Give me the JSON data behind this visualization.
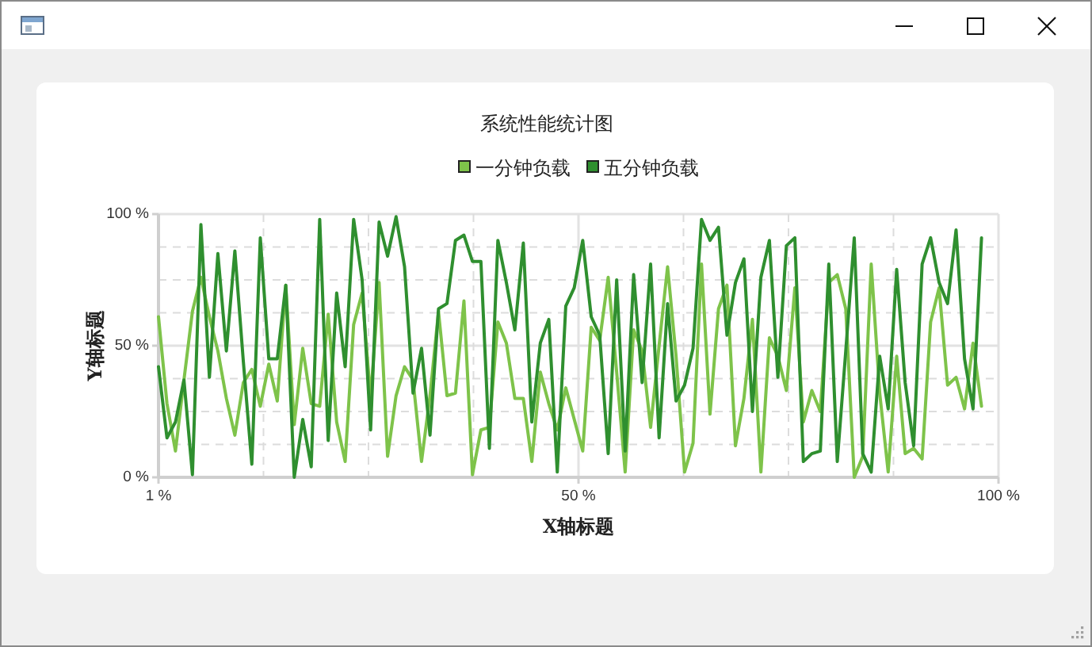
{
  "chart_data": {
    "type": "line",
    "title": "系统性能统计图",
    "xlabel": "X轴标题",
    "ylabel": "Y轴标题",
    "x": [
      1,
      2,
      3,
      4,
      5,
      6,
      7,
      8,
      9,
      10,
      11,
      12,
      13,
      14,
      15,
      16,
      17,
      18,
      19,
      20,
      21,
      22,
      23,
      24,
      25,
      26,
      27,
      28,
      29,
      30,
      31,
      32,
      33,
      34,
      35,
      36,
      37,
      38,
      39,
      40,
      41,
      42,
      43,
      44,
      45,
      46,
      47,
      48,
      49,
      50,
      51,
      52,
      53,
      54,
      55,
      56,
      57,
      58,
      59,
      60,
      61,
      62,
      63,
      64,
      65,
      66,
      67,
      68,
      69,
      70,
      71,
      72,
      73,
      74,
      75,
      76,
      77,
      78,
      79,
      80,
      81,
      82,
      83,
      84,
      85,
      86,
      87,
      88,
      89,
      90,
      91,
      92,
      93,
      94,
      95,
      96,
      97,
      98
    ],
    "series": [
      {
        "name": "一分钟负载",
        "color": "#7ec34a",
        "values": [
          61,
          28,
          10,
          37,
          63,
          76,
          61,
          48,
          30,
          16,
          36,
          41,
          27,
          43,
          29,
          73,
          20,
          49,
          28,
          27,
          62,
          21,
          6,
          58,
          70,
          30,
          74,
          8,
          31,
          42,
          37,
          6,
          31,
          63,
          31,
          32,
          67,
          1,
          18,
          19,
          59,
          51,
          30,
          30,
          6,
          40,
          28,
          18,
          34,
          22,
          10,
          57,
          52,
          76,
          40,
          2,
          56,
          48,
          19,
          50,
          80,
          46,
          2,
          13,
          81,
          24,
          64,
          73,
          12,
          30,
          60,
          2,
          53,
          46,
          33,
          72,
          21,
          33,
          25,
          74,
          77,
          64,
          0,
          8,
          81,
          32,
          2,
          46,
          9,
          11,
          7,
          59,
          72,
          35,
          38,
          26,
          51,
          27
        ]
      },
      {
        "name": "五分钟负载",
        "color": "#2f8f2f",
        "values": [
          42,
          15,
          21,
          37,
          1,
          96,
          38,
          85,
          48,
          86,
          44,
          5,
          91,
          45,
          45,
          73,
          0,
          22,
          4,
          98,
          14,
          70,
          42,
          98,
          75,
          18,
          97,
          84,
          99,
          80,
          32,
          49,
          16,
          64,
          66,
          90,
          92,
          82,
          82,
          11,
          90,
          74,
          56,
          89,
          21,
          51,
          60,
          2,
          65,
          72,
          90,
          61,
          54,
          9,
          75,
          10,
          77,
          36,
          81,
          15,
          66,
          29,
          35,
          49,
          98,
          90,
          95,
          54,
          74,
          83,
          25,
          76,
          90,
          38,
          88,
          91,
          6,
          9,
          10,
          81,
          6,
          48,
          91,
          9,
          2,
          46,
          26,
          79,
          36,
          12,
          81,
          91,
          74,
          66,
          94,
          45,
          26,
          91
        ]
      }
    ],
    "xlim": [
      1,
      100
    ],
    "ylim": [
      0,
      100
    ],
    "xticks": [
      {
        "value": 1,
        "label": "1 %"
      },
      {
        "value": 13.375,
        "label": null
      },
      {
        "value": 25.75,
        "label": null
      },
      {
        "value": 38.125,
        "label": null
      },
      {
        "value": 50.5,
        "label": "50 %"
      },
      {
        "value": 62.875,
        "label": null
      },
      {
        "value": 75.25,
        "label": null
      },
      {
        "value": 87.625,
        "label": null
      },
      {
        "value": 100,
        "label": "100 %"
      }
    ],
    "yticks": [
      {
        "value": 0,
        "label": "0 %"
      },
      {
        "value": 12.5,
        "label": null
      },
      {
        "value": 25,
        "label": null
      },
      {
        "value": 37.5,
        "label": null
      },
      {
        "value": 50,
        "label": "50 %"
      },
      {
        "value": 62.5,
        "label": null
      },
      {
        "value": 75,
        "label": null
      },
      {
        "value": 87.5,
        "label": null
      },
      {
        "value": 100,
        "label": "100 %"
      }
    ],
    "grid": true,
    "legend": "top",
    "line_style": "solid"
  }
}
